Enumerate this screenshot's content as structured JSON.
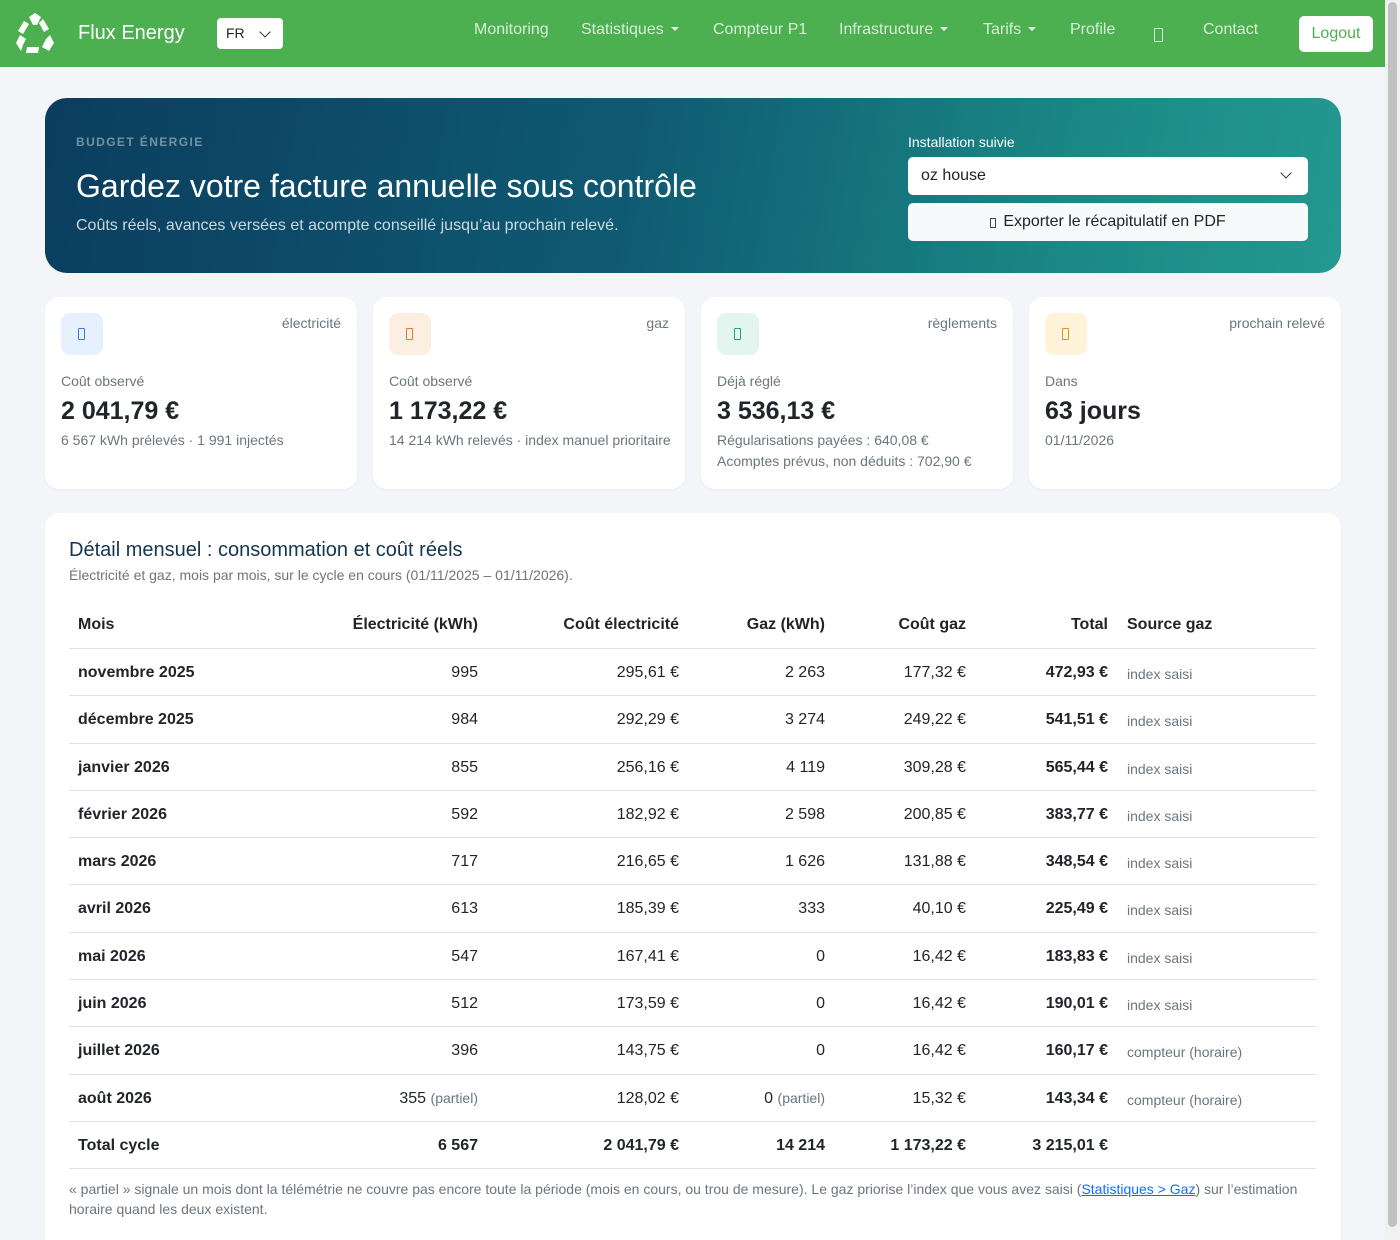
{
  "navbar": {
    "brand": "Flux Energy",
    "lang": "FR",
    "items": [
      {
        "label": "Monitoring",
        "dropdown": false
      },
      {
        "label": "Statistiques",
        "dropdown": true
      },
      {
        "label": "Compteur P1",
        "dropdown": false
      },
      {
        "label": "Infrastructure",
        "dropdown": true
      },
      {
        "label": "Tarifs",
        "dropdown": true
      },
      {
        "label": "Profile",
        "dropdown": false
      },
      {
        "label": "Contact",
        "dropdown": false
      }
    ],
    "logout": "Logout",
    "colors": {
      "bar": "#4caf50"
    }
  },
  "hero": {
    "eyebrow": "BUDGET ÉNERGIE",
    "title": "Gardez votre facture annuelle sous contrôle",
    "subtitle": "Coûts réels, avances versées et acompte conseillé jusqu’au prochain relevé.",
    "installation_label": "Installation suivie",
    "installation_value": "oz house",
    "export_label": "Exporter le récapitulatif en PDF"
  },
  "cards": [
    {
      "tag": "électricité",
      "label": "Coût observé",
      "value": "2 041,79 €",
      "notes": [
        "6 567 kWh prélevés · 1 991 injectés"
      ],
      "icon": "lightning-icon",
      "icon_bg": "#e7f0fd",
      "icon_color": "#3b7dd8"
    },
    {
      "tag": "gaz",
      "label": "Coût observé",
      "value": "1 173,22 €",
      "notes": [
        "14 214 kWh relevés · index manuel prioritaire"
      ],
      "icon": "flame-icon",
      "icon_bg": "#fdeee2",
      "icon_color": "#e07a3a"
    },
    {
      "tag": "règlements",
      "label": "Déjà réglé",
      "value": "3 536,13 €",
      "notes": [
        "Régularisations payées : 640,08 €",
        "Acomptes prévus, non déduits : 702,90 €"
      ],
      "icon": "wallet-icon",
      "icon_bg": "#e3f5ef",
      "icon_color": "#2f9e76"
    },
    {
      "tag": "prochain relevé",
      "label": "Dans",
      "value": "63 jours",
      "notes": [
        "01/11/2026"
      ],
      "icon": "calendar-icon",
      "icon_bg": "#fff3d9",
      "icon_color": "#d99b1c"
    }
  ],
  "monthly": {
    "title": "Détail mensuel : consommation et coût réels",
    "subtitle": "Électricité et gaz, mois par mois, sur le cycle en cours (01/11/2025 – 01/11/2026).",
    "headers": {
      "mois": "Mois",
      "elec": "Électricité (kWh)",
      "celec": "Coût électricité",
      "gaz": "Gaz (kWh)",
      "cgaz": "Coût gaz",
      "total": "Total",
      "src": "Source gaz"
    },
    "rows": [
      {
        "mois": "novembre 2025",
        "elec": "995",
        "elec_partial": "",
        "celec": "295,61 €",
        "gaz": "2 263",
        "gaz_partial": "",
        "cgaz": "177,32 €",
        "total": "472,93 €",
        "src": "index saisi"
      },
      {
        "mois": "décembre 2025",
        "elec": "984",
        "elec_partial": "",
        "celec": "292,29 €",
        "gaz": "3 274",
        "gaz_partial": "",
        "cgaz": "249,22 €",
        "total": "541,51 €",
        "src": "index saisi"
      },
      {
        "mois": "janvier 2026",
        "elec": "855",
        "elec_partial": "",
        "celec": "256,16 €",
        "gaz": "4 119",
        "gaz_partial": "",
        "cgaz": "309,28 €",
        "total": "565,44 €",
        "src": "index saisi"
      },
      {
        "mois": "février 2026",
        "elec": "592",
        "elec_partial": "",
        "celec": "182,92 €",
        "gaz": "2 598",
        "gaz_partial": "",
        "cgaz": "200,85 €",
        "total": "383,77 €",
        "src": "index saisi"
      },
      {
        "mois": "mars 2026",
        "elec": "717",
        "elec_partial": "",
        "celec": "216,65 €",
        "gaz": "1 626",
        "gaz_partial": "",
        "cgaz": "131,88 €",
        "total": "348,54 €",
        "src": "index saisi"
      },
      {
        "mois": "avril 2026",
        "elec": "613",
        "elec_partial": "",
        "celec": "185,39 €",
        "gaz": "333",
        "gaz_partial": "",
        "cgaz": "40,10 €",
        "total": "225,49 €",
        "src": "index saisi"
      },
      {
        "mois": "mai 2026",
        "elec": "547",
        "elec_partial": "",
        "celec": "167,41 €",
        "gaz": "0",
        "gaz_partial": "",
        "cgaz": "16,42 €",
        "total": "183,83 €",
        "src": "index saisi"
      },
      {
        "mois": "juin 2026",
        "elec": "512",
        "elec_partial": "",
        "celec": "173,59 €",
        "gaz": "0",
        "gaz_partial": "",
        "cgaz": "16,42 €",
        "total": "190,01 €",
        "src": "index saisi"
      },
      {
        "mois": "juillet 2026",
        "elec": "396",
        "elec_partial": "",
        "celec": "143,75 €",
        "gaz": "0",
        "gaz_partial": "",
        "cgaz": "16,42 €",
        "total": "160,17 €",
        "src": "compteur (horaire)"
      },
      {
        "mois": "août 2026",
        "elec": "355",
        "elec_partial": "(partiel)",
        "celec": "128,02 €",
        "gaz": "0",
        "gaz_partial": "(partiel)",
        "cgaz": "15,32 €",
        "total": "143,34 €",
        "src": "compteur (horaire)"
      }
    ],
    "total_row": {
      "mois": "Total cycle",
      "elec": "6 567",
      "celec": "2 041,79 €",
      "gaz": "14 214",
      "cgaz": "1 173,22 €",
      "total": "3 215,01 €"
    },
    "footnote_before": "« partiel » signale un mois dont la télémétrie ne couvre pas encore toute la période (mois en cours, ou trou de mesure). Le gaz priorise l’index que vous avez saisi (",
    "footnote_link": "Statistiques > Gaz",
    "footnote_after": ") sur l’estimation horaire quand les deux existent."
  }
}
